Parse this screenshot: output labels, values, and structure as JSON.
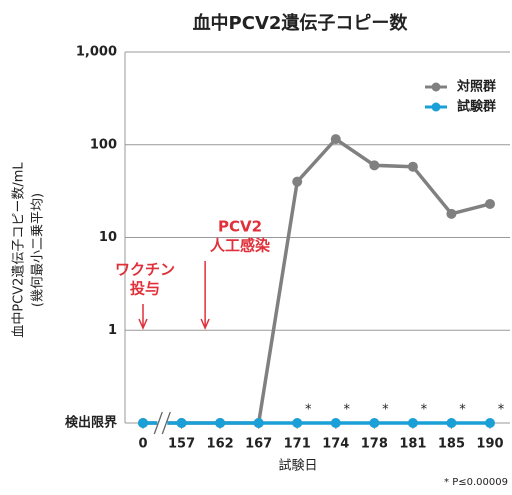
{
  "chart_data": {
    "type": "line",
    "title": "血中PCV2遺伝子コピー数",
    "y_label": [
      "血中PCV2遺伝子コピー数/mL",
      "(幾何最小二乗平均)"
    ],
    "x_label": "試験日",
    "categories": [
      "0",
      "157",
      "162",
      "167",
      "171",
      "174",
      "178",
      "181",
      "185",
      "190"
    ],
    "series": [
      {
        "name": "対照群",
        "color": "#808080",
        "values": [
          0.1,
          0.1,
          0.1,
          0.1,
          40,
          115,
          60,
          58,
          18,
          23
        ]
      },
      {
        "name": "試験群",
        "color": "#1a9fd6",
        "values": [
          0.1,
          0.1,
          0.1,
          0.1,
          0.1,
          0.1,
          0.1,
          0.1,
          0.1,
          0.1
        ]
      }
    ],
    "log_scale": true,
    "ylim": [
      0.1,
      1000
    ],
    "yticks": [
      {
        "value": 1000,
        "label": "1,000"
      },
      100,
      10,
      1,
      {
        "value": 0.1,
        "label": "検出限界"
      }
    ],
    "grid": true,
    "legend": "upper right",
    "annotations": [
      {
        "lines": [
          "ワクチン",
          "投与"
        ],
        "category": "0"
      },
      {
        "lines": [
          "PCV2",
          "人工感染"
        ],
        "category": "162"
      }
    ],
    "significance": {
      "mark": "*",
      "categories": [
        "171",
        "174",
        "178",
        "181",
        "185",
        "190"
      ],
      "note": "* P≤0.00009"
    }
  }
}
